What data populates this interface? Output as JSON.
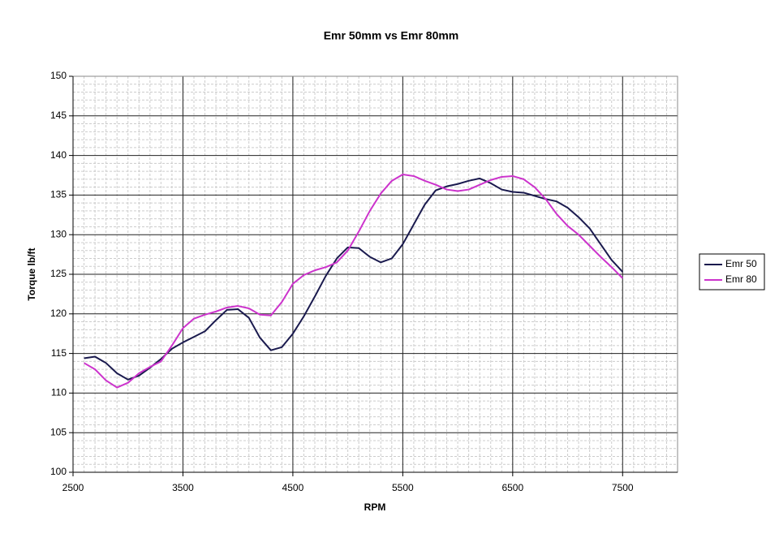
{
  "chart_data": {
    "type": "line",
    "title": "Emr 50mm vs Emr 80mm",
    "x_label": "RPM",
    "y_label": "Torque lb/ft",
    "x": [
      2600,
      2700,
      2800,
      2900,
      3000,
      3100,
      3200,
      3300,
      3400,
      3500,
      3600,
      3700,
      3800,
      3900,
      4000,
      4100,
      4200,
      4300,
      4400,
      4500,
      4600,
      4700,
      4800,
      4900,
      5000,
      5100,
      5200,
      5300,
      5400,
      5500,
      5600,
      5700,
      5800,
      5900,
      6000,
      6100,
      6200,
      6300,
      6400,
      6500,
      6600,
      6700,
      6800,
      6900,
      7000,
      7100,
      7200,
      7300,
      7400,
      7500
    ],
    "series": [
      {
        "name": "Emr 50",
        "color": "#1a1a4e",
        "values": [
          114.4,
          114.6,
          113.8,
          112.5,
          111.7,
          112.2,
          113.2,
          114.3,
          115.6,
          116.4,
          117.1,
          117.8,
          119.2,
          120.5,
          120.6,
          119.5,
          117.0,
          115.4,
          115.8,
          117.5,
          119.7,
          122.2,
          124.8,
          127.0,
          128.4,
          128.3,
          127.2,
          126.5,
          127.0,
          128.8,
          131.3,
          133.8,
          135.6,
          136.1,
          136.4,
          136.8,
          137.1,
          136.5,
          135.7,
          135.4,
          135.3,
          134.9,
          134.5,
          134.2,
          133.4,
          132.2,
          130.8,
          128.8,
          126.8,
          125.3
        ]
      },
      {
        "name": "Emr 80",
        "color": "#cc33cc",
        "values": [
          113.8,
          113.0,
          111.6,
          110.7,
          111.3,
          112.5,
          113.3,
          114.0,
          116.0,
          118.2,
          119.4,
          119.9,
          120.3,
          120.8,
          121.0,
          120.7,
          119.9,
          119.8,
          121.5,
          123.8,
          124.9,
          125.5,
          125.9,
          126.5,
          128.0,
          130.4,
          133.0,
          135.2,
          136.8,
          137.6,
          137.4,
          136.8,
          136.3,
          135.7,
          135.5,
          135.7,
          136.3,
          136.9,
          137.3,
          137.4,
          137.0,
          136.0,
          134.5,
          132.6,
          131.1,
          130.0,
          128.6,
          127.2,
          125.9,
          124.5
        ]
      }
    ],
    "xlim": [
      2500,
      8000
    ],
    "xticks": [
      2500,
      3500,
      4500,
      5500,
      6500,
      7500
    ],
    "ylim": [
      100,
      150
    ],
    "yticks": [
      100,
      105,
      110,
      115,
      120,
      125,
      130,
      135,
      140,
      145,
      150
    ],
    "grid": true,
    "legend": "right"
  }
}
